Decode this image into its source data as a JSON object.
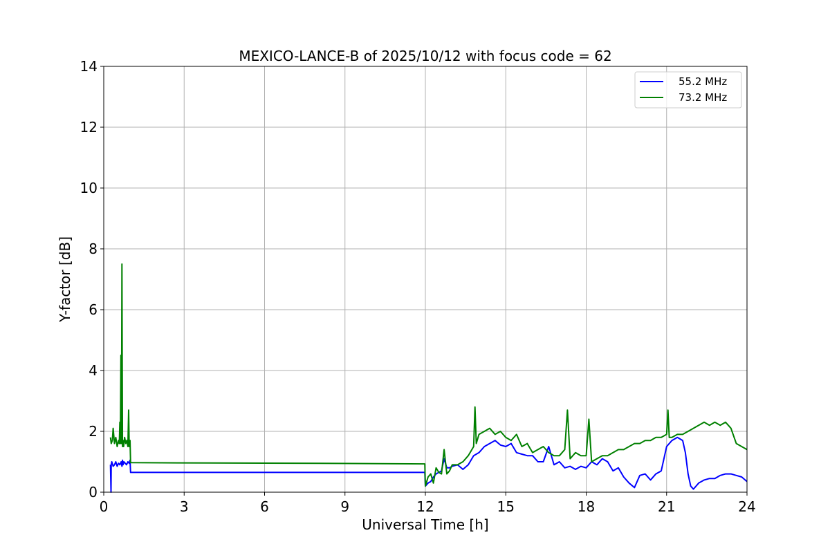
{
  "chart_data": {
    "type": "line",
    "title": "MEXICO-LANCE-B of 2025/10/12 with focus code = 62",
    "xlabel": "Universal Time [h]",
    "ylabel": "Y-factor [dB]",
    "xlim": [
      0,
      24
    ],
    "ylim": [
      0,
      14
    ],
    "xticks": [
      0,
      3,
      6,
      9,
      12,
      15,
      18,
      21,
      24
    ],
    "yticks": [
      0,
      2,
      4,
      6,
      8,
      10,
      12,
      14
    ],
    "grid": true,
    "legend_position": "top-right",
    "series": [
      {
        "name": "55.2 MHz",
        "color": "#0000ff",
        "x": [
          0.25,
          0.27,
          0.28,
          0.3,
          0.35,
          0.4,
          0.45,
          0.5,
          0.55,
          0.6,
          0.65,
          0.68,
          0.7,
          0.72,
          0.75,
          0.8,
          0.85,
          0.9,
          0.95,
          0.98,
          1.0,
          4.0,
          8.0,
          11.98,
          12.0,
          12.1,
          12.2,
          12.3,
          12.4,
          12.5,
          12.6,
          12.7,
          12.8,
          12.9,
          13.0,
          13.2,
          13.4,
          13.6,
          13.8,
          14.0,
          14.2,
          14.4,
          14.6,
          14.8,
          15.0,
          15.2,
          15.4,
          15.6,
          15.8,
          16.0,
          16.2,
          16.4,
          16.6,
          16.8,
          17.0,
          17.2,
          17.4,
          17.6,
          17.8,
          18.0,
          18.2,
          18.4,
          18.6,
          18.8,
          19.0,
          19.2,
          19.4,
          19.6,
          19.8,
          20.0,
          20.2,
          20.4,
          20.6,
          20.8,
          21.0,
          21.2,
          21.4,
          21.6,
          21.7,
          21.8,
          21.9,
          22.0,
          22.2,
          22.4,
          22.6,
          22.8,
          23.0,
          23.2,
          23.4,
          23.6,
          23.8,
          24.0
        ],
        "values": [
          0.9,
          0.0,
          0.9,
          1.0,
          0.85,
          0.9,
          1.0,
          0.85,
          0.95,
          0.9,
          1.0,
          0.85,
          1.05,
          0.9,
          1.0,
          0.95,
          0.9,
          1.0,
          0.95,
          1.05,
          0.65,
          0.65,
          0.65,
          0.65,
          0.2,
          0.3,
          0.35,
          0.5,
          0.6,
          0.65,
          0.7,
          1.1,
          0.8,
          0.8,
          0.85,
          0.9,
          0.75,
          0.9,
          1.2,
          1.3,
          1.5,
          1.6,
          1.7,
          1.55,
          1.5,
          1.6,
          1.3,
          1.25,
          1.2,
          1.2,
          1.0,
          1.0,
          1.5,
          0.9,
          1.0,
          0.8,
          0.85,
          0.75,
          0.85,
          0.8,
          1.0,
          0.9,
          1.1,
          1.0,
          0.7,
          0.8,
          0.5,
          0.3,
          0.15,
          0.55,
          0.6,
          0.4,
          0.6,
          0.7,
          1.5,
          1.7,
          1.8,
          1.7,
          1.3,
          0.6,
          0.2,
          0.1,
          0.3,
          0.4,
          0.45,
          0.45,
          0.55,
          0.6,
          0.6,
          0.55,
          0.5,
          0.35
        ]
      },
      {
        "name": "73.2 MHz",
        "color": "#008000",
        "x": [
          0.25,
          0.28,
          0.32,
          0.35,
          0.4,
          0.45,
          0.5,
          0.55,
          0.58,
          0.6,
          0.62,
          0.64,
          0.66,
          0.68,
          0.7,
          0.72,
          0.74,
          0.78,
          0.82,
          0.86,
          0.9,
          0.93,
          0.95,
          0.98,
          1.0,
          4.0,
          8.0,
          11.98,
          12.0,
          12.1,
          12.2,
          12.3,
          12.4,
          12.5,
          12.6,
          12.7,
          12.8,
          12.9,
          13.0,
          13.2,
          13.4,
          13.6,
          13.8,
          13.85,
          13.9,
          14.0,
          14.2,
          14.4,
          14.6,
          14.8,
          15.0,
          15.2,
          15.4,
          15.6,
          15.8,
          16.0,
          16.2,
          16.4,
          16.6,
          16.8,
          17.0,
          17.2,
          17.3,
          17.4,
          17.6,
          17.8,
          18.0,
          18.1,
          18.2,
          18.4,
          18.6,
          18.8,
          19.0,
          19.2,
          19.4,
          19.6,
          19.8,
          20.0,
          20.2,
          20.4,
          20.6,
          20.8,
          21.0,
          21.05,
          21.1,
          21.2,
          21.4,
          21.6,
          21.8,
          22.0,
          22.2,
          22.4,
          22.6,
          22.8,
          23.0,
          23.2,
          23.4,
          23.6,
          23.8,
          24.0
        ],
        "values": [
          1.8,
          1.6,
          1.7,
          2.1,
          1.6,
          1.8,
          1.5,
          1.7,
          1.6,
          2.3,
          1.6,
          4.5,
          1.6,
          7.5,
          1.5,
          1.7,
          1.5,
          1.8,
          1.6,
          1.7,
          1.5,
          2.7,
          1.5,
          1.7,
          0.97,
          0.96,
          0.95,
          0.93,
          0.2,
          0.5,
          0.6,
          0.3,
          0.8,
          0.65,
          0.6,
          1.4,
          0.6,
          0.7,
          0.9,
          0.9,
          1.0,
          1.2,
          1.5,
          2.8,
          1.6,
          1.9,
          2.0,
          2.1,
          1.9,
          2.0,
          1.8,
          1.7,
          1.9,
          1.5,
          1.6,
          1.3,
          1.4,
          1.5,
          1.3,
          1.2,
          1.2,
          1.4,
          2.7,
          1.1,
          1.3,
          1.2,
          1.2,
          2.4,
          1.0,
          1.1,
          1.2,
          1.2,
          1.3,
          1.4,
          1.4,
          1.5,
          1.6,
          1.6,
          1.7,
          1.7,
          1.8,
          1.8,
          1.9,
          2.7,
          1.8,
          1.8,
          1.9,
          1.9,
          2.0,
          2.1,
          2.2,
          2.3,
          2.2,
          2.3,
          2.2,
          2.3,
          2.1,
          1.6,
          1.5,
          1.4
        ]
      }
    ]
  }
}
